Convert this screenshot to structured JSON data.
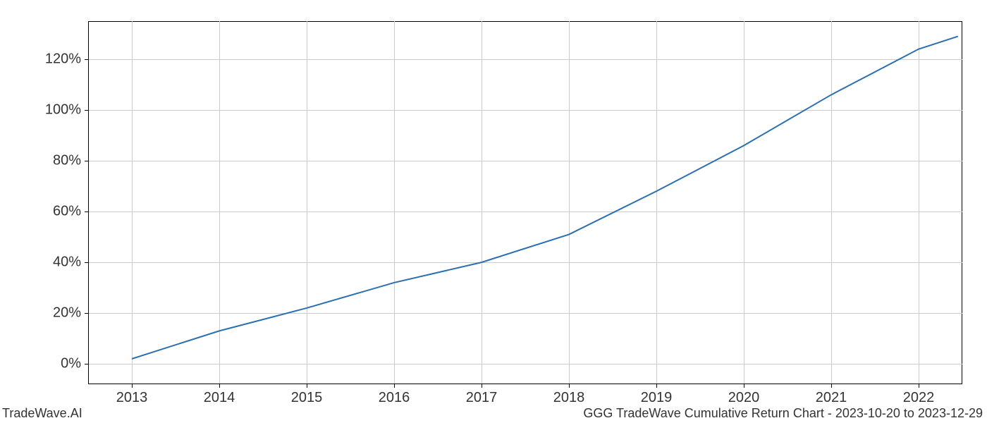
{
  "chart": {
    "type": "line",
    "background_color": "#ffffff",
    "grid_color": "#cccccc",
    "axis_color": "#000000",
    "line_color": "#2b6fb0",
    "line_width": 2,
    "x_values": [
      2013,
      2014,
      2015,
      2016,
      2017,
      2018,
      2019,
      2020,
      2021,
      2022,
      2022.45
    ],
    "y_values": [
      2,
      13,
      22,
      32,
      40,
      51,
      68,
      86,
      106,
      124,
      129
    ],
    "xlim": [
      2012.5,
      2022.5
    ],
    "ylim": [
      -8,
      135
    ],
    "x_ticks": [
      2013,
      2014,
      2015,
      2016,
      2017,
      2018,
      2019,
      2020,
      2021,
      2022
    ],
    "x_tick_labels": [
      "2013",
      "2014",
      "2015",
      "2016",
      "2017",
      "2018",
      "2019",
      "2020",
      "2021",
      "2022"
    ],
    "y_ticks": [
      0,
      20,
      40,
      60,
      80,
      100,
      120
    ],
    "y_tick_labels": [
      "0%",
      "20%",
      "40%",
      "60%",
      "80%",
      "100%",
      "120%"
    ],
    "tick_fontsize": 20,
    "footer_fontsize": 18
  },
  "footer": {
    "left": "TradeWave.AI",
    "right": "GGG TradeWave Cumulative Return Chart - 2023-10-20 to 2023-12-29"
  }
}
